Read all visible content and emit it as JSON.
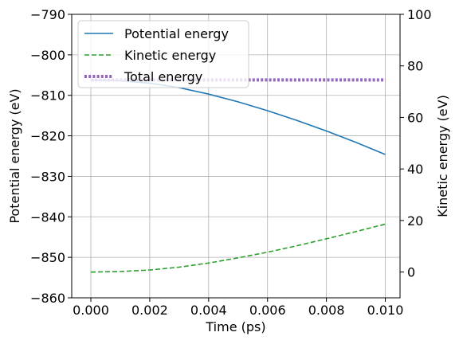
{
  "chart_data": {
    "type": "line",
    "xlabel": "Time (ps)",
    "ylabel_left": "Potential energy (eV)",
    "ylabel_right": "Kinetic energy (eV)",
    "xlim": [
      -0.00065,
      0.0105
    ],
    "ylim_left": [
      -860,
      -790
    ],
    "ylim_right": [
      -10,
      100
    ],
    "x_ticks": [
      "0.000",
      "0.002",
      "0.004",
      "0.006",
      "0.008",
      "0.010"
    ],
    "x_tick_values": [
      0,
      0.002,
      0.004,
      0.006,
      0.008,
      0.01
    ],
    "y_ticks_left": [
      "−790",
      "−800",
      "−810",
      "−820",
      "−830",
      "−840",
      "−850",
      "−860"
    ],
    "y_tick_values_left": [
      -790,
      -800,
      -810,
      -820,
      -830,
      -840,
      -850,
      -860
    ],
    "y_ticks_right": [
      "100",
      "80",
      "60",
      "40",
      "20",
      "0"
    ],
    "y_tick_values_right": [
      100,
      80,
      60,
      40,
      20,
      0
    ],
    "grid": true,
    "legend_position": "top-left",
    "series": [
      {
        "name": "Potential energy",
        "axis": "left",
        "color": "#1f77b4",
        "style": "solid",
        "x": [
          0,
          0.001,
          0.002,
          0.003,
          0.004,
          0.005,
          0.006,
          0.007,
          0.008,
          0.009,
          0.01
        ],
        "y": [
          -806.2,
          -806.4,
          -807.0,
          -808.1,
          -809.7,
          -811.6,
          -813.8,
          -816.2,
          -818.8,
          -821.6,
          -824.6
        ]
      },
      {
        "name": "Kinetic energy",
        "axis": "right",
        "color": "#2ca02c",
        "style": "dashed",
        "x": [
          0,
          0.001,
          0.002,
          0.003,
          0.004,
          0.005,
          0.006,
          0.007,
          0.008,
          0.009,
          0.01
        ],
        "y": [
          0.0,
          0.2,
          0.8,
          1.9,
          3.5,
          5.5,
          7.7,
          10.2,
          12.9,
          15.7,
          18.6
        ]
      },
      {
        "name": "Total energy",
        "axis": "left",
        "color": "#9467bd",
        "style": "dotted",
        "x": [
          0,
          0.001,
          0.002,
          0.003,
          0.004,
          0.005,
          0.006,
          0.007,
          0.008,
          0.009,
          0.01
        ],
        "y": [
          -806.2,
          -806.2,
          -806.2,
          -806.2,
          -806.2,
          -806.2,
          -806.2,
          -806.2,
          -806.2,
          -806.2,
          -806.2
        ]
      }
    ]
  }
}
